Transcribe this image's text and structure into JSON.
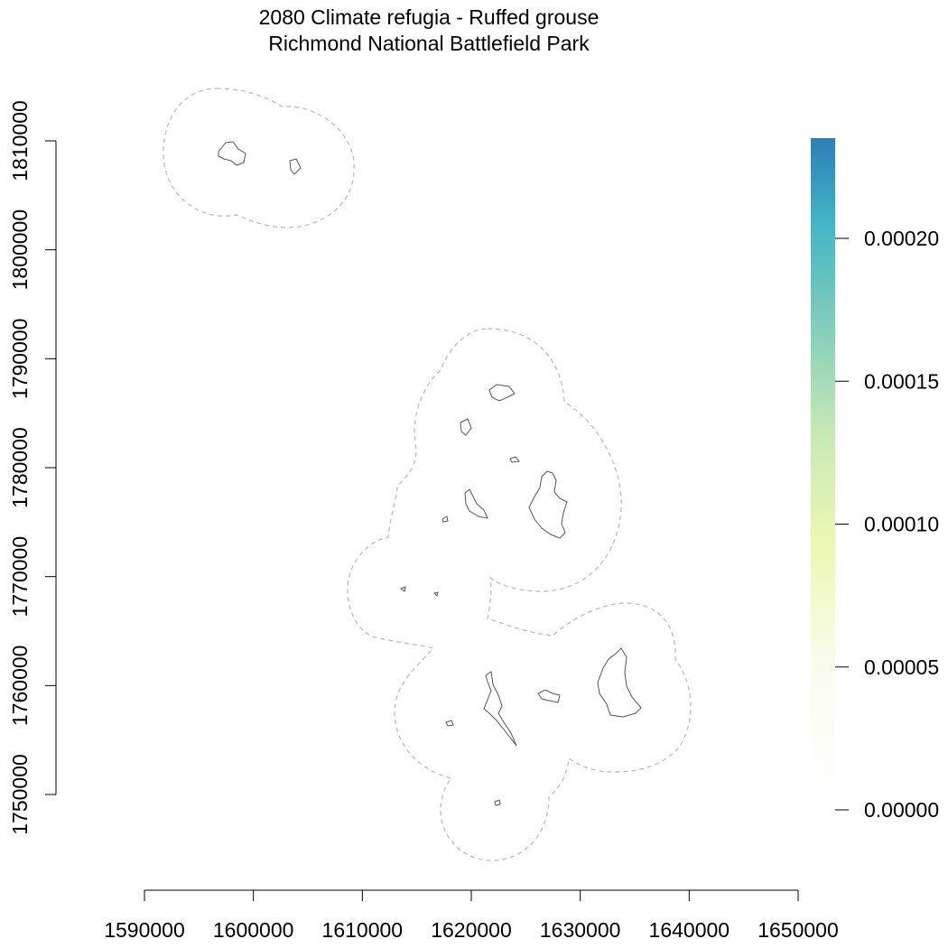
{
  "title": {
    "line1": "2080 Climate refugia - Ruffed grouse",
    "line2": "Richmond National Battlefield Park"
  },
  "chart_data": {
    "type": "heatmap",
    "title": "2080 Climate refugia - Ruffed grouse",
    "subtitle": "Richmond National Battlefield Park",
    "xlim": [
      1590000,
      1650000
    ],
    "ylim": [
      1750000,
      1810000
    ],
    "x_ticks": [
      1590000,
      1600000,
      1610000,
      1620000,
      1630000,
      1640000,
      1650000
    ],
    "x_tick_labels": [
      "1590000",
      "1600000",
      "1610000",
      "1620000",
      "1630000",
      "1640000",
      "1650000"
    ],
    "y_ticks": [
      1750000,
      1760000,
      1770000,
      1780000,
      1790000,
      1800000,
      1810000
    ],
    "y_tick_labels": [
      "1750000",
      "1760000",
      "1770000",
      "1780000",
      "1790000",
      "1800000",
      "1810000"
    ],
    "legend": {
      "placement": "right",
      "min": 0,
      "max": 0.000233,
      "ticks": [
        0,
        5e-05,
        0.0001,
        0.00015,
        0.0002
      ],
      "tick_labels": [
        "0.00000",
        "0.00005",
        "0.00010",
        "0.00015",
        "0.00020"
      ],
      "colors": [
        "#ffffff",
        "#f7fbe0",
        "#edf8b1",
        "#c7e9b4",
        "#7fcdbb",
        "#41b6c4",
        "#2c7fb8"
      ]
    },
    "grid": false,
    "buffer_color": "#b8b8b8",
    "outline_color": "#555555"
  }
}
